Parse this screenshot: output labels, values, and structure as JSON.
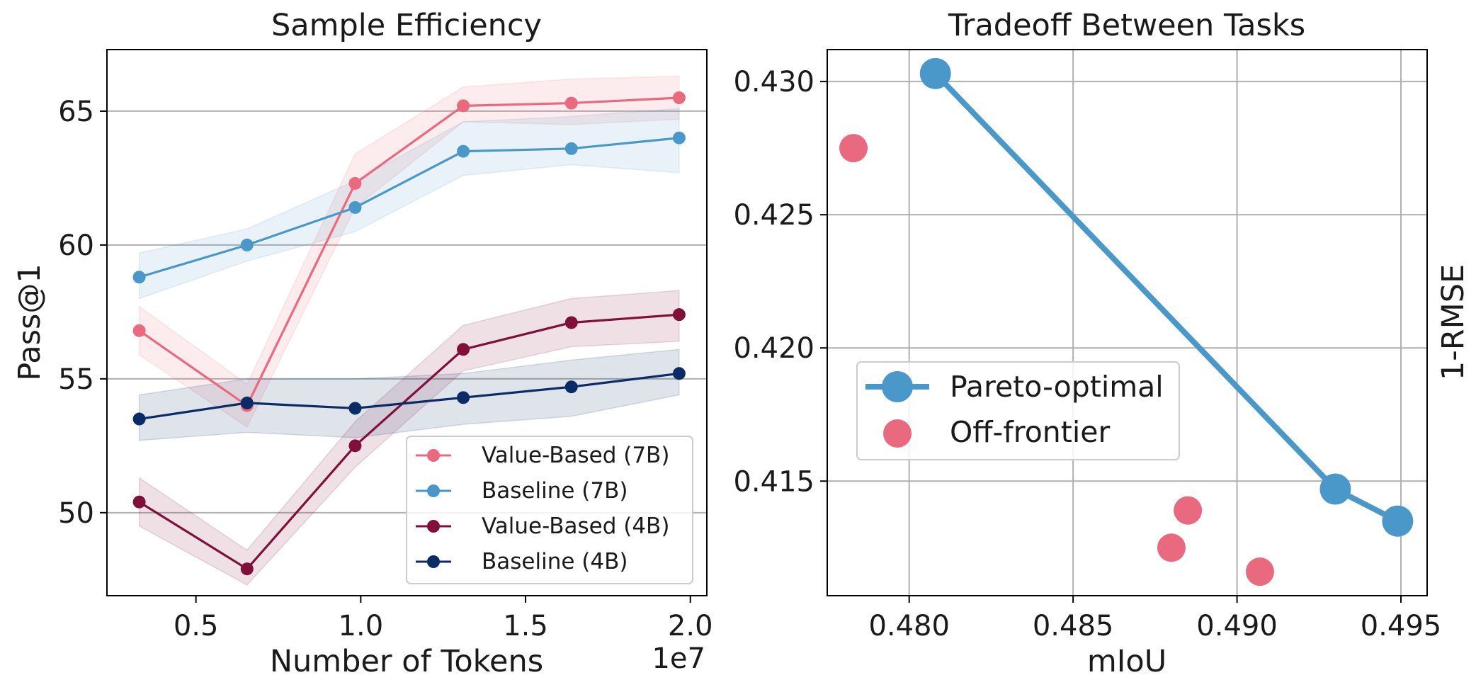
{
  "chart_data": [
    {
      "type": "line",
      "title": "Sample Efficiency",
      "xlabel": "Number of Tokens",
      "ylabel": "Pass@1",
      "x_offset_label": "1e7",
      "x_scale_note": "x values in units of 1e7 tokens",
      "xlim": [
        0.23,
        2.05
      ],
      "ylim": [
        46.9,
        67.3
      ],
      "xticks": [
        0.5,
        1.0,
        1.5,
        2.0
      ],
      "xtick_labels": [
        "0.5",
        "1.0",
        "1.5",
        "2.0"
      ],
      "yticks": [
        50,
        55,
        60,
        65
      ],
      "ytick_labels": [
        "50",
        "55",
        "60",
        "65"
      ],
      "grid": "horizontal",
      "legend_position": "lower-right",
      "x": [
        0.328,
        0.655,
        0.983,
        1.311,
        1.639,
        1.966
      ],
      "series": [
        {
          "name": "Value-Based (7B)",
          "color": "#e9697f",
          "values": [
            56.8,
            54.0,
            62.3,
            65.2,
            65.3,
            65.5
          ],
          "band_lower": [
            55.9,
            53.2,
            61.4,
            64.6,
            64.5,
            64.7
          ],
          "band_upper": [
            57.7,
            54.8,
            63.4,
            65.9,
            66.2,
            66.3
          ]
        },
        {
          "name": "Baseline (7B)",
          "color": "#4a98c9",
          "values": [
            58.8,
            60.0,
            61.4,
            63.5,
            63.6,
            64.0
          ],
          "band_lower": [
            58.0,
            59.4,
            60.5,
            62.6,
            63.0,
            62.7
          ],
          "band_upper": [
            59.7,
            60.6,
            62.4,
            64.6,
            64.8,
            65.1
          ]
        },
        {
          "name": "Value-Based (4B)",
          "color": "#800f3a",
          "values": [
            50.4,
            47.9,
            52.5,
            56.1,
            57.1,
            57.4
          ],
          "band_lower": [
            49.5,
            47.3,
            51.7,
            55.3,
            56.2,
            56.4
          ],
          "band_upper": [
            51.3,
            48.6,
            53.4,
            57.0,
            58.0,
            58.3
          ]
        },
        {
          "name": "Baseline (4B)",
          "color": "#0b2b66",
          "values": [
            53.5,
            54.1,
            53.9,
            54.3,
            54.7,
            55.2
          ],
          "band_lower": [
            52.7,
            53.0,
            52.8,
            53.3,
            53.6,
            54.4
          ],
          "band_upper": [
            54.4,
            55.0,
            55.0,
            55.2,
            55.7,
            56.1
          ]
        }
      ]
    },
    {
      "type": "scatter",
      "title": "Tradeoff Between Tasks",
      "xlabel": "mIoU",
      "ylabel": "1-RMSE",
      "xlim": [
        0.4775,
        0.4958
      ],
      "ylim": [
        0.4107,
        0.4312
      ],
      "xticks": [
        0.48,
        0.485,
        0.49,
        0.495
      ],
      "xtick_labels": [
        "0.480",
        "0.485",
        "0.490",
        "0.495"
      ],
      "yticks": [
        0.415,
        0.42,
        0.425,
        0.43
      ],
      "ytick_labels": [
        "0.415",
        "0.420",
        "0.425",
        "0.430"
      ],
      "grid": "both",
      "legend_position": "center-left",
      "series": [
        {
          "name": "Pareto-optimal",
          "color": "#4a98c9",
          "connected": true,
          "points": [
            [
              0.4808,
              0.4303
            ],
            [
              0.493,
              0.4147
            ],
            [
              0.4949,
              0.4135
            ]
          ]
        },
        {
          "name": "Off-frontier",
          "color": "#e9697f",
          "connected": false,
          "points": [
            [
              0.4783,
              0.4275
            ],
            [
              0.4885,
              0.4139
            ],
            [
              0.488,
              0.4125
            ],
            [
              0.4907,
              0.4116
            ]
          ]
        }
      ]
    }
  ]
}
